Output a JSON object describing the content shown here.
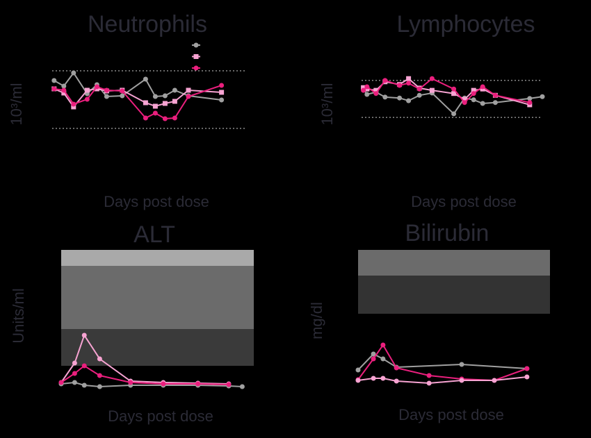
{
  "chart_data": [
    {
      "type": "line",
      "title": "Neutrophils",
      "x_label": "Days post dose",
      "y_label": "10³/ml",
      "xlim": [
        0,
        100
      ],
      "ylim": [
        0,
        100
      ],
      "ref_lines": [
        93,
        10
      ],
      "series": [
        {
          "color": "#a0a0a0",
          "marker": "circle",
          "x": [
            1,
            6,
            11,
            18,
            23,
            28,
            36,
            48,
            53,
            58,
            63,
            70,
            87
          ],
          "values": [
            79,
            71,
            90,
            60,
            73,
            56,
            57,
            81,
            56,
            57,
            65,
            57,
            51
          ]
        },
        {
          "color": "#f7a3d2",
          "marker": "square",
          "x": [
            1,
            6,
            11,
            18,
            23,
            28,
            36,
            48,
            53,
            58,
            63,
            70,
            87
          ],
          "values": [
            67,
            61,
            41,
            65,
            67,
            64,
            65,
            47,
            42,
            46,
            49,
            65,
            62
          ]
        },
        {
          "color": "#ea1f7d",
          "marker": "circle",
          "x": [
            1,
            6,
            11,
            18,
            23,
            28,
            36,
            48,
            53,
            58,
            63,
            70,
            87
          ],
          "values": [
            67,
            65,
            45,
            52,
            70,
            65,
            64,
            25,
            32,
            24,
            25,
            56,
            72
          ]
        }
      ]
    },
    {
      "type": "line",
      "title": "Lymphocytes",
      "x_label": "Days post dose",
      "y_label": "10³/ml",
      "xlim": [
        0,
        100
      ],
      "ylim": [
        0,
        100
      ],
      "ref_lines": [
        91,
        9
      ],
      "series": [
        {
          "color": "#a0a0a0",
          "marker": "circle",
          "x": [
            1,
            3,
            8,
            13,
            21,
            26,
            32,
            39,
            51,
            57,
            62,
            67,
            74,
            93,
            100
          ],
          "values": [
            72,
            60,
            65,
            54,
            52,
            46,
            58,
            63,
            17,
            52,
            48,
            40,
            42,
            51,
            55
          ]
        },
        {
          "color": "#f7a3d2",
          "marker": "square",
          "x": [
            1,
            3,
            8,
            13,
            21,
            26,
            32,
            39,
            51,
            57,
            62,
            67,
            74,
            93
          ],
          "values": [
            75,
            72,
            69,
            88,
            82,
            95,
            74,
            69,
            62,
            49,
            69,
            72,
            58,
            37
          ]
        },
        {
          "color": "#ea1f7d",
          "marker": "circle",
          "x": [
            1,
            3,
            8,
            13,
            21,
            26,
            32,
            39,
            51,
            57,
            62,
            67,
            74,
            93
          ],
          "values": [
            69,
            77,
            62,
            91,
            80,
            85,
            72,
            95,
            72,
            42,
            62,
            77,
            58,
            42
          ]
        }
      ]
    },
    {
      "type": "line",
      "title": "ALT",
      "x_label": "Days post dose",
      "y_label": "Units/ml",
      "xlim": [
        0,
        100
      ],
      "ylim": [
        0,
        100
      ],
      "bands": [
        {
          "from": 88.5,
          "to": 100,
          "color": "#a9a9a9"
        },
        {
          "from": 43,
          "to": 88.5,
          "color": "#6b6b6b"
        },
        {
          "from": 16.5,
          "to": 43,
          "color": "#3a3a3a"
        }
      ],
      "series": [
        {
          "color": "#a0a0a0",
          "marker": "circle",
          "x": [
            0,
            7,
            12,
            20,
            36,
            53,
            71,
            87,
            94
          ],
          "values": [
            3.5,
            4.5,
            2.5,
            1.5,
            2.5,
            2.5,
            2.5,
            2,
            1.5
          ]
        },
        {
          "color": "#f7a3d2",
          "marker": "circle",
          "x": [
            0,
            7,
            12,
            20,
            36,
            53,
            71,
            87
          ],
          "values": [
            4.5,
            18.5,
            38.5,
            21.5,
            5.5,
            4.5,
            4,
            3.5
          ]
        },
        {
          "color": "#ea1f7d",
          "marker": "circle",
          "x": [
            0,
            7,
            12,
            20,
            36,
            53,
            71,
            87
          ],
          "values": [
            4.5,
            11,
            16.5,
            9.5,
            4.5,
            3.5,
            3.5,
            3
          ]
        }
      ]
    },
    {
      "type": "line",
      "title": "Bilirubin",
      "x_label": "Days post dose",
      "y_label": "mg/dl",
      "xlim": [
        0,
        100
      ],
      "ylim": [
        0,
        100
      ],
      "bands": [
        {
          "from": 81.5,
          "to": 100,
          "color": "#6b6b6b"
        },
        {
          "from": 54,
          "to": 81.5,
          "color": "#333333"
        }
      ],
      "series": [
        {
          "color": "#a0a0a0",
          "marker": "circle",
          "x": [
            0,
            8,
            13,
            20,
            54,
            88
          ],
          "values": [
            13.5,
            25,
            21.5,
            15.5,
            17.5,
            14.5
          ]
        },
        {
          "color": "#ea1f7d",
          "marker": "circle",
          "x": [
            0,
            8,
            13,
            20,
            37,
            54,
            71,
            88
          ],
          "values": [
            6.5,
            21.5,
            31.5,
            15,
            9.5,
            7,
            6,
            14.5
          ]
        },
        {
          "color": "#f7a3d2",
          "marker": "circle",
          "x": [
            0,
            8,
            13,
            20,
            37,
            54,
            71,
            88
          ],
          "values": [
            6,
            7.5,
            7.5,
            5.5,
            4,
            6,
            6,
            8.5
          ]
        }
      ]
    }
  ]
}
